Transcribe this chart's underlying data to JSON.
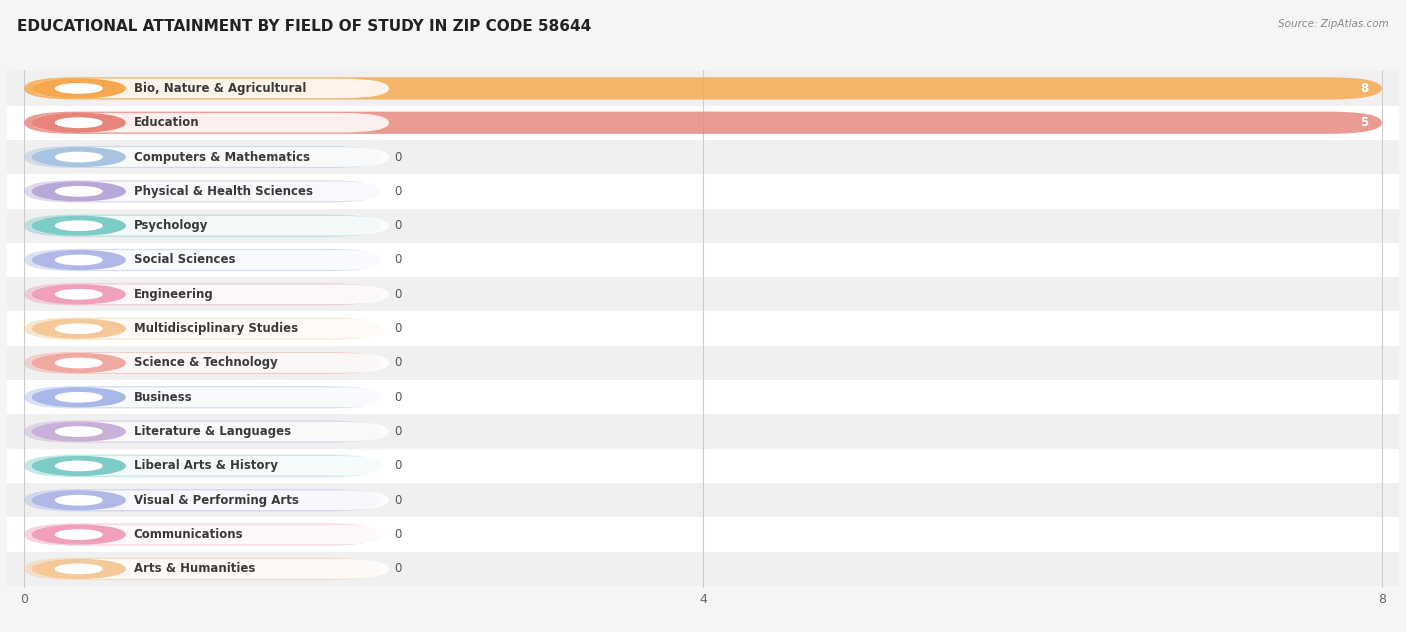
{
  "title": "EDUCATIONAL ATTAINMENT BY FIELD OF STUDY IN ZIP CODE 58644",
  "source_text": "Source: ZipAtlas.com",
  "categories": [
    "Bio, Nature & Agricultural",
    "Education",
    "Computers & Mathematics",
    "Physical & Health Sciences",
    "Psychology",
    "Social Sciences",
    "Engineering",
    "Multidisciplinary Studies",
    "Science & Technology",
    "Business",
    "Literature & Languages",
    "Liberal Arts & History",
    "Visual & Performing Arts",
    "Communications",
    "Arts & Humanities"
  ],
  "values": [
    8,
    5,
    0,
    0,
    0,
    0,
    0,
    0,
    0,
    0,
    0,
    0,
    0,
    0,
    0
  ],
  "bar_colors": [
    "#f5a84e",
    "#e8857a",
    "#a8c4e0",
    "#b8a8d8",
    "#7dccc8",
    "#b0b8e8",
    "#f0a0b8",
    "#f5c898",
    "#f0a8a0",
    "#a8b8e8",
    "#c8b0d8",
    "#7dccc8",
    "#b0b8e8",
    "#f0a0b8",
    "#f5c898"
  ],
  "xlim_max": 8,
  "xticks": [
    0,
    4,
    8
  ],
  "bg_color": "#f5f5f5",
  "row_colors": [
    "#f0f0f0",
    "#ffffff"
  ],
  "title_fontsize": 11,
  "label_fontsize": 8.5,
  "value_fontsize": 8.5
}
